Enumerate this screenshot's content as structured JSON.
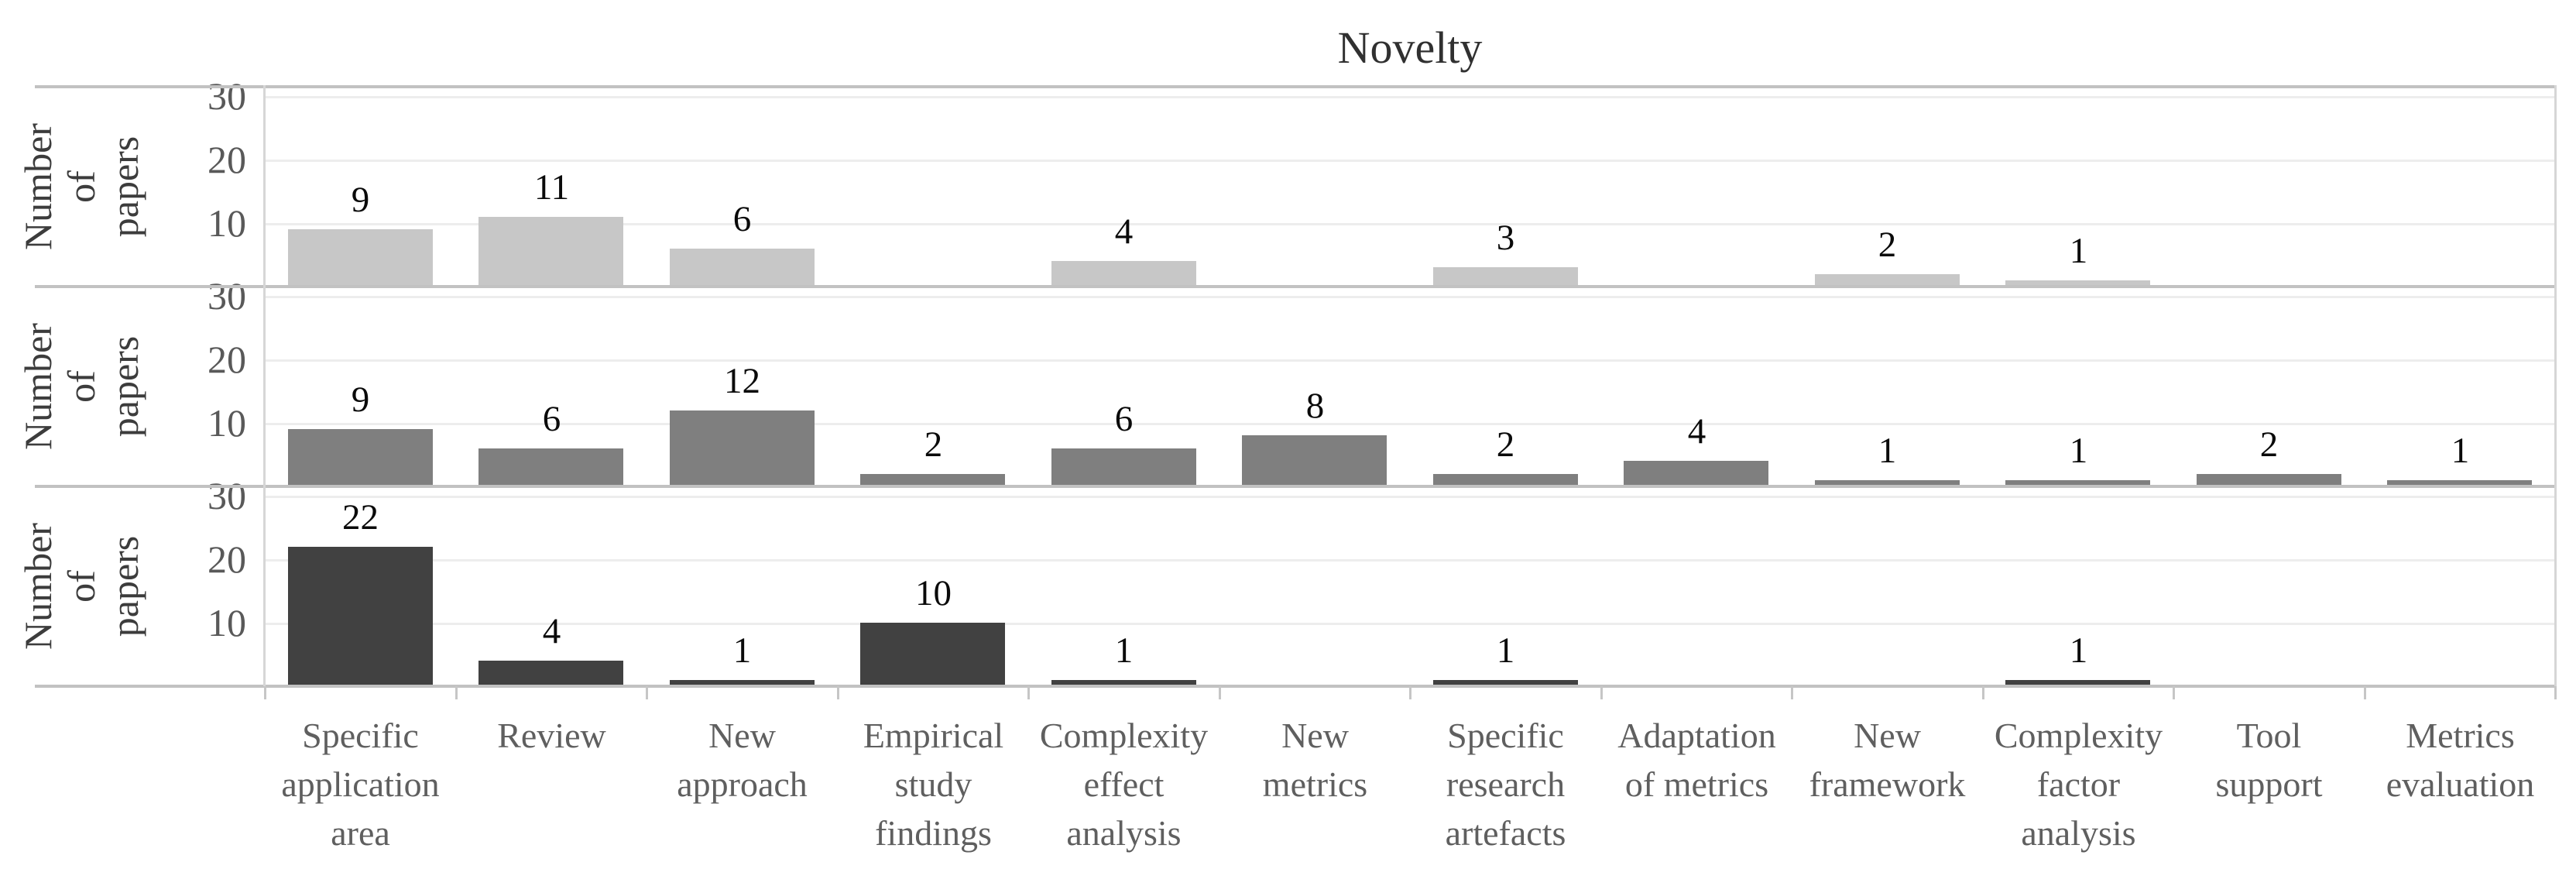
{
  "title": "Novelty",
  "y_axis_title": "Number of papers",
  "chart_data": {
    "type": "bar",
    "title": "Novelty",
    "subtitle": "",
    "xlabel": "",
    "ylabel": "Number of papers",
    "ylabel_display": "Number of\npapers",
    "ylim": [
      0,
      32
    ],
    "yticks": [
      10,
      20,
      30
    ],
    "grid": true,
    "legend_position": "none",
    "facet_rows": 3,
    "categories": [
      "Specific application area",
      "Review",
      "New approach",
      "Empirical study findings",
      "Complexity effect analysis",
      "New metrics",
      "Specific research artefacts",
      "Adaptation of metrics",
      "New framework",
      "Complexity factor analysis",
      "Tool support",
      "Metrics evaluation"
    ],
    "categories_display": [
      "Specific\napplication\narea",
      "Review",
      "New\napproach",
      "Empirical\nstudy\nfindings",
      "Complexity\neffect\nanalysis",
      "New\nmetrics",
      "Specific\nresearch\nartefacts",
      "Adaptation\nof metrics",
      "New\nframework",
      "Complexity\nfactor\nanalysis",
      "Tool\nsupport",
      "Metrics\nevaluation"
    ],
    "series": [
      {
        "name": "row1",
        "color": "#c7c7c7",
        "values": [
          9,
          11,
          6,
          null,
          4,
          null,
          3,
          null,
          2,
          1,
          null,
          null
        ]
      },
      {
        "name": "row2",
        "color": "#7f7f7f",
        "values": [
          9,
          6,
          12,
          2,
          6,
          8,
          2,
          4,
          1,
          1,
          2,
          1
        ]
      },
      {
        "name": "row3",
        "color": "#414141",
        "values": [
          22,
          4,
          1,
          10,
          1,
          null,
          1,
          null,
          null,
          1,
          null,
          null
        ]
      }
    ]
  },
  "colors": {
    "row1_bar": "#c7c7c7",
    "row2_bar": "#7f7f7f",
    "row3_bar": "#414141",
    "gridline": "#ededed",
    "panel_border": "#c2c2c2",
    "axis_line": "#d6d6d6",
    "tick_text": "#595959",
    "value_text": "#0a0a0a"
  }
}
